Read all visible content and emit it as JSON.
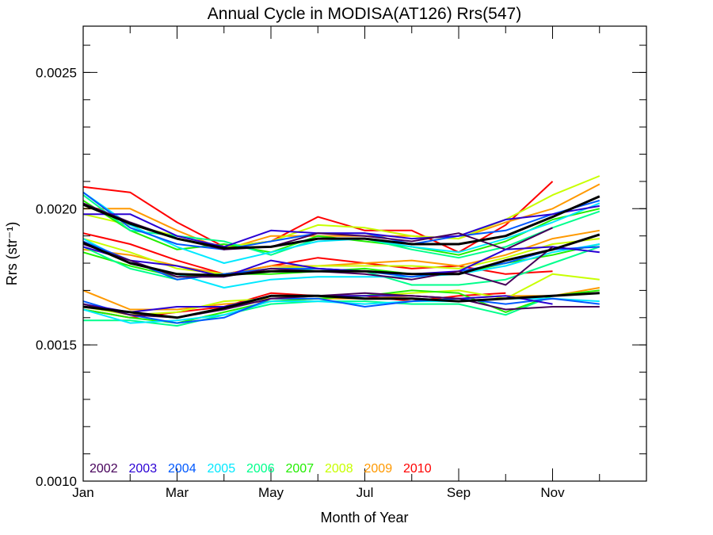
{
  "chart_data": {
    "type": "line",
    "title": "Annual Cycle in MODISA(AT126) Rrs(547)",
    "xlabel": "Month of Year",
    "ylabel": "Rrs (str⁻¹)",
    "xlim": [
      1,
      13
    ],
    "ylim": [
      0.001,
      0.00267
    ],
    "xticks": [
      {
        "v": 1,
        "label": "Jan"
      },
      {
        "v": 3,
        "label": "Mar"
      },
      {
        "v": 5,
        "label": "May"
      },
      {
        "v": 7,
        "label": "Jul"
      },
      {
        "v": 9,
        "label": "Sep"
      },
      {
        "v": 11,
        "label": "Nov"
      }
    ],
    "yticks": [
      {
        "v": 0.001,
        "label": "0.0010"
      },
      {
        "v": 0.0015,
        "label": "0.0015"
      },
      {
        "v": 0.002,
        "label": "0.0020"
      },
      {
        "v": 0.0025,
        "label": "0.0025"
      }
    ],
    "grid": false,
    "legend_position": "bottom-left",
    "legend": [
      {
        "name": "2002",
        "color": "#46005a"
      },
      {
        "name": "2003",
        "color": "#2a00d4"
      },
      {
        "name": "2004",
        "color": "#0059ff"
      },
      {
        "name": "2005",
        "color": "#00e8ff"
      },
      {
        "name": "2006",
        "color": "#00ff8c"
      },
      {
        "name": "2007",
        "color": "#22ee00"
      },
      {
        "name": "2008",
        "color": "#c8ff00"
      },
      {
        "name": "2009",
        "color": "#ff9900"
      },
      {
        "name": "2010",
        "color": "#ff0000"
      }
    ],
    "x": [
      1,
      2,
      3,
      4,
      5,
      6,
      7,
      8,
      9,
      10,
      11,
      12
    ],
    "series": [
      {
        "color": "#000000",
        "width": 3,
        "values": [
          0.002015,
          0.001945,
          0.00189,
          0.001855,
          0.00186,
          0.00189,
          0.00189,
          0.00187,
          0.00187,
          0.0019,
          0.00197,
          0.002045
        ]
      },
      {
        "color": "#000000",
        "width": 3,
        "values": [
          0.001875,
          0.0018,
          0.00176,
          0.001755,
          0.00177,
          0.00177,
          0.00177,
          0.00176,
          0.00176,
          0.00181,
          0.00185,
          0.001905
        ]
      },
      {
        "color": "#000000",
        "width": 3,
        "values": [
          0.00164,
          0.00162,
          0.0016,
          0.001635,
          0.00168,
          0.00168,
          0.00167,
          0.00167,
          0.00166,
          0.00167,
          0.00168,
          0.00169
        ]
      },
      {
        "color": "#ff0000",
        "values": [
          0.00208,
          0.00206,
          0.00195,
          0.00186,
          0.00188,
          0.00197,
          0.00192,
          0.00192,
          0.00184,
          0.00194,
          0.0021,
          null
        ]
      },
      {
        "color": "#ff9900",
        "values": [
          0.002,
          0.002,
          0.00192,
          0.00185,
          0.0019,
          0.0019,
          0.0019,
          0.0019,
          0.00189,
          0.00195,
          0.002,
          0.00209
        ]
      },
      {
        "color": "#c8ff00",
        "values": [
          0.00198,
          0.00194,
          0.0019,
          0.00186,
          0.00188,
          0.00194,
          0.00193,
          0.0019,
          0.00189,
          0.00196,
          0.00205,
          0.00212
        ]
      },
      {
        "color": "#22ee00",
        "values": [
          0.00203,
          0.00192,
          0.00185,
          0.00187,
          0.00184,
          0.0019,
          0.00188,
          0.00186,
          0.00183,
          0.00188,
          0.00196,
          0.002
        ]
      },
      {
        "color": "#00ff8c",
        "values": [
          0.00205,
          0.00192,
          0.0019,
          0.00188,
          0.00183,
          0.00189,
          0.00189,
          0.00185,
          0.00182,
          0.00186,
          0.00193,
          0.00199
        ]
      },
      {
        "color": "#00e8ff",
        "values": [
          0.00206,
          0.00194,
          0.00186,
          0.0018,
          0.00184,
          0.00188,
          0.00189,
          0.00186,
          0.00184,
          0.00189,
          0.00195,
          0.00202
        ]
      },
      {
        "color": "#0059ff",
        "values": [
          0.00206,
          0.00193,
          0.00187,
          0.00185,
          0.00188,
          0.00191,
          0.00191,
          0.00187,
          0.0019,
          0.00192,
          0.00198,
          0.00203
        ]
      },
      {
        "color": "#2a00d4",
        "values": [
          0.00198,
          0.00198,
          0.0019,
          0.00186,
          0.00192,
          0.00191,
          0.00191,
          0.00189,
          0.0019,
          0.00196,
          0.00198,
          0.00201
        ]
      },
      {
        "color": "#46005a",
        "values": [
          0.00202,
          0.00195,
          0.00189,
          0.00185,
          0.00186,
          0.00191,
          0.0019,
          0.00188,
          0.00191,
          0.00185,
          0.00193,
          null
        ]
      },
      {
        "color": "#ff0000",
        "values": [
          0.00191,
          0.00187,
          0.00181,
          0.00176,
          0.00179,
          0.00182,
          0.0018,
          0.00178,
          0.00179,
          0.00176,
          0.00177,
          null
        ]
      },
      {
        "color": "#ff9900",
        "values": [
          0.00185,
          0.00183,
          0.00179,
          0.00176,
          0.00179,
          0.00179,
          0.0018,
          0.00181,
          0.00179,
          0.00183,
          0.00189,
          0.00192
        ]
      },
      {
        "color": "#c8ff00",
        "values": [
          0.00189,
          0.00184,
          0.00178,
          0.00176,
          0.00178,
          0.00179,
          0.00179,
          0.00179,
          0.00178,
          0.00182,
          0.00187,
          0.00189
        ]
      },
      {
        "color": "#22ee00",
        "values": [
          0.00184,
          0.00179,
          0.00175,
          0.00176,
          0.00176,
          0.00177,
          0.00178,
          0.00176,
          0.00176,
          0.0018,
          0.00183,
          0.00187
        ]
      },
      {
        "color": "#00ff8c",
        "values": [
          0.00186,
          0.00178,
          0.00174,
          0.00176,
          0.00177,
          0.00178,
          0.00177,
          0.00172,
          0.00172,
          0.00174,
          0.0018,
          0.00186
        ]
      },
      {
        "color": "#00e8ff",
        "values": [
          0.00189,
          0.0018,
          0.00176,
          0.00171,
          0.00174,
          0.00175,
          0.00175,
          0.00175,
          0.00176,
          0.00179,
          0.00184,
          0.00187
        ]
      },
      {
        "color": "#0059ff",
        "values": [
          0.00188,
          0.00181,
          0.00174,
          0.00176,
          0.00178,
          0.00178,
          0.00177,
          0.00175,
          0.00177,
          0.0018,
          0.00185,
          0.00186
        ]
      },
      {
        "color": "#2a00d4",
        "values": [
          0.00186,
          0.00181,
          0.00179,
          0.00175,
          0.00181,
          0.00178,
          0.00177,
          0.00176,
          0.00177,
          0.00185,
          0.00186,
          0.00184
        ]
      },
      {
        "color": "#46005a",
        "values": [
          0.00187,
          0.00181,
          0.00175,
          0.00175,
          0.00178,
          0.00177,
          0.00176,
          0.00174,
          0.00177,
          0.00172,
          0.00186,
          null
        ]
      },
      {
        "color": "#ff0000",
        "values": [
          0.00163,
          0.0016,
          0.00162,
          0.00164,
          0.00169,
          0.00168,
          0.00168,
          0.00166,
          0.00168,
          0.00169,
          null,
          null
        ]
      },
      {
        "color": "#ff9900",
        "values": [
          0.0017,
          0.00163,
          0.00163,
          0.00165,
          0.00166,
          0.00167,
          0.00167,
          0.00168,
          0.00167,
          0.00168,
          0.00168,
          0.00171
        ]
      },
      {
        "color": "#c8ff00",
        "values": [
          0.00164,
          0.00161,
          0.00162,
          0.00166,
          0.00167,
          0.00168,
          0.00168,
          0.00169,
          0.0017,
          0.00167,
          0.00176,
          0.00174
        ]
      },
      {
        "color": "#22ee00",
        "values": [
          0.00163,
          0.0016,
          0.00158,
          0.00162,
          0.00166,
          0.00167,
          0.00168,
          0.0017,
          0.00169,
          0.00162,
          0.00168,
          0.0017
        ]
      },
      {
        "color": "#00ff8c",
        "values": [
          0.00159,
          0.00159,
          0.00157,
          0.00161,
          0.00165,
          0.00166,
          0.00166,
          0.00165,
          0.00165,
          0.00161,
          0.00168,
          0.00169
        ]
      },
      {
        "color": "#00e8ff",
        "values": [
          0.00163,
          0.00158,
          0.00159,
          0.00161,
          0.00166,
          0.00166,
          0.00165,
          0.00166,
          0.00166,
          0.00167,
          0.00167,
          0.00166
        ]
      },
      {
        "color": "#0059ff",
        "values": [
          0.00166,
          0.00161,
          0.00158,
          0.0016,
          0.00167,
          0.00167,
          0.00164,
          0.00166,
          0.00167,
          0.00165,
          0.00167,
          0.00165
        ]
      },
      {
        "color": "#2a00d4",
        "values": [
          0.00165,
          0.00162,
          0.00164,
          0.00164,
          0.00168,
          0.00168,
          0.00168,
          0.00168,
          0.00167,
          0.00168,
          0.00165,
          null
        ]
      },
      {
        "color": "#46005a",
        "values": [
          0.00165,
          0.00161,
          0.0016,
          0.00163,
          0.00167,
          0.00168,
          0.00169,
          0.00168,
          0.00167,
          0.00163,
          0.00164,
          0.00164
        ]
      }
    ]
  }
}
